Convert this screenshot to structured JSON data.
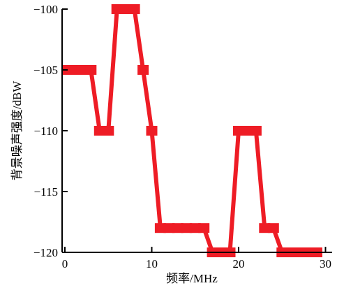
{
  "chart_data": {
    "type": "line",
    "xlabel": "频率/MHz",
    "ylabel": "背景噪声强度/dBW",
    "xlim": [
      0,
      30
    ],
    "ylim": [
      -120,
      -100
    ],
    "xticks": [
      0,
      10,
      20,
      30
    ],
    "yticks": [
      -100,
      -105,
      -110,
      -115,
      -120
    ],
    "xtick_labels": [
      "0",
      "10",
      "20",
      "30"
    ],
    "ytick_labels": [
      "−100",
      "−105",
      "−110",
      "−115",
      "−120"
    ],
    "series": [
      {
        "color": "#ee1c25",
        "marker": "square",
        "x": [
          0.3,
          1,
          2,
          3,
          4,
          5,
          6,
          7,
          8,
          9,
          10,
          11,
          12,
          13,
          14,
          15,
          16,
          17,
          18,
          19,
          20,
          21,
          22,
          23,
          24,
          25,
          26,
          27,
          28,
          29
        ],
        "y": [
          -105,
          -105,
          -105,
          -105,
          -110,
          -110,
          -100,
          -100,
          -100,
          -105,
          -110,
          -118,
          -118,
          -118,
          -118,
          -118,
          -118,
          -120,
          -120,
          -120,
          -110,
          -110,
          -110,
          -118,
          -118,
          -120,
          -120,
          -120,
          -120,
          -120
        ]
      }
    ]
  }
}
